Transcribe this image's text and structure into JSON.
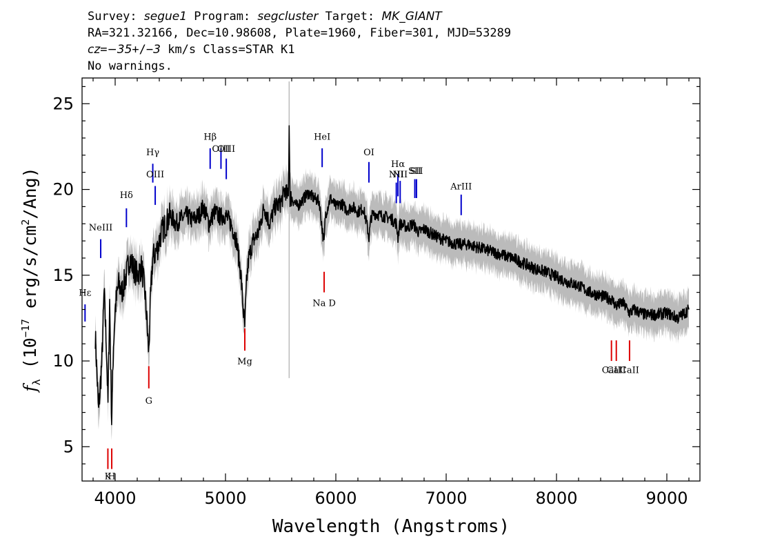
{
  "header": {
    "l1_a": "Survey: ",
    "survey": "segue1",
    "l1_b": " Program: ",
    "program": "segcluster",
    "l1_c": " Target: ",
    "target": "MK_GIANT",
    "line2": "RA=321.32166, Dec=10.98608, Plate=1960, Fiber=301, MJD=53289",
    "l3_cz": "cz",
    "l3_eq": "=",
    "l3_v": "−35",
    "l3_pm": "+/−",
    "l3_err": "3",
    "l3_rest": " km/s Class=STAR K1",
    "line4": "No warnings."
  },
  "chart_data": {
    "type": "line",
    "xlabel": "Wavelength (Angstroms)",
    "ylabel": "fλ (10⁻¹⁷ erg/s/cm²/Ang)",
    "xlim": [
      3700,
      9300
    ],
    "ylim": [
      3,
      26.5
    ],
    "x_ticks": [
      4000,
      5000,
      6000,
      7000,
      8000,
      9000
    ],
    "y_ticks": [
      5,
      10,
      15,
      20,
      25
    ],
    "grid": false,
    "legend": "none",
    "colors": {
      "spectrum": "#000000",
      "noise_band": "#bbbbbb",
      "emission_lines": "#0000cc",
      "absorption_lines": "#dd0000"
    },
    "series": [
      {
        "role": "spectrum",
        "x": [
          3820,
          3850,
          3880,
          3900,
          3920,
          3935,
          3950,
          3968,
          3985,
          4000,
          4030,
          4060,
          4100,
          4130,
          4160,
          4200,
          4240,
          4270,
          4290,
          4305,
          4320,
          4340,
          4380,
          4420,
          4460,
          4500,
          4550,
          4600,
          4650,
          4700,
          4760,
          4800,
          4850,
          4900,
          4950,
          5000,
          5050,
          5100,
          5140,
          5160,
          5175,
          5190,
          5210,
          5250,
          5300,
          5350,
          5400,
          5450,
          5500,
          5540,
          5570,
          5577,
          5585,
          5600,
          5650,
          5700,
          5750,
          5800,
          5850,
          5880,
          5893,
          5905,
          5950,
          6000,
          6050,
          6100,
          6150,
          6200,
          6250,
          6280,
          6300,
          6320,
          6350,
          6400,
          6450,
          6500,
          6550,
          6563,
          6580,
          6650,
          6700,
          6750,
          6800,
          6900,
          7000,
          7100,
          7200,
          7300,
          7400,
          7500,
          7600,
          7700,
          7800,
          7900,
          8000,
          8100,
          8200,
          8300,
          8400,
          8500,
          8542,
          8600,
          8662,
          8700,
          8800,
          8900,
          9000,
          9100,
          9200
        ],
        "y": [
          11.5,
          7.0,
          10.0,
          14.0,
          11.0,
          7.5,
          13.5,
          6.5,
          11.0,
          13.0,
          14.5,
          14.0,
          15.0,
          16.0,
          15.5,
          15.0,
          15.5,
          14.0,
          12.0,
          10.5,
          13.5,
          16.0,
          16.5,
          17.5,
          18.0,
          18.5,
          18.0,
          18.3,
          18.5,
          18.2,
          18.5,
          19.0,
          18.0,
          18.7,
          18.4,
          18.5,
          18.0,
          17.0,
          15.0,
          13.0,
          12.0,
          14.5,
          16.0,
          17.0,
          17.5,
          19.0,
          18.0,
          19.0,
          19.2,
          20.0,
          19.5,
          24.0,
          19.5,
          19.5,
          19.0,
          19.4,
          19.8,
          19.5,
          19.3,
          17.5,
          16.8,
          18.5,
          19.5,
          19.0,
          19.2,
          18.8,
          19.0,
          18.7,
          18.9,
          18.0,
          17.2,
          18.4,
          18.6,
          18.5,
          18.4,
          18.3,
          18.0,
          17.2,
          18.0,
          17.8,
          18.0,
          17.5,
          17.7,
          17.3,
          17.0,
          16.8,
          16.8,
          16.6,
          16.4,
          16.2,
          16.0,
          15.7,
          15.4,
          15.2,
          14.9,
          14.6,
          14.4,
          14.0,
          13.8,
          13.6,
          13.2,
          13.4,
          12.8,
          13.0,
          12.7,
          12.7,
          12.8,
          12.5,
          13.0
        ]
      }
    ],
    "line_markers": [
      {
        "label": "Hε",
        "wave": 3727,
        "y1": 12.3,
        "y2": 13.3,
        "label_y": 13.8,
        "kind": "emission"
      },
      {
        "label": "NeIII",
        "wave": 3869,
        "y1": 16.0,
        "y2": 17.1,
        "label_y": 17.6,
        "kind": "emission"
      },
      {
        "label": "Hδ",
        "wave": 4102,
        "y1": 17.8,
        "y2": 18.9,
        "label_y": 19.5,
        "kind": "emission"
      },
      {
        "label": "Hγ",
        "wave": 4341,
        "y1": 20.4,
        "y2": 21.5,
        "label_y": 22.0,
        "kind": "emission"
      },
      {
        "label": "OIII",
        "wave": 4363,
        "y1": 19.1,
        "y2": 20.2,
        "label_y": 20.7,
        "kind": "emission"
      },
      {
        "label": "Hβ",
        "wave": 4861,
        "y1": 21.2,
        "y2": 22.4,
        "label_y": 22.9,
        "kind": "emission"
      },
      {
        "label": "OIII",
        "wave": 4959,
        "y1": 21.2,
        "y2": 22.4,
        "label_y": 22.2,
        "kind": "emission"
      },
      {
        "label": "OIII",
        "wave": 5007,
        "y1": 20.6,
        "y2": 21.8,
        "label_y": 22.2,
        "kind": "emission"
      },
      {
        "label": "HeI",
        "wave": 5876,
        "y1": 21.3,
        "y2": 22.4,
        "label_y": 22.9,
        "kind": "emission"
      },
      {
        "label": "OI",
        "wave": 6300,
        "y1": 20.4,
        "y2": 21.6,
        "label_y": 22.0,
        "kind": "emission"
      },
      {
        "label": "NII",
        "wave": 6548,
        "y1": 19.2,
        "y2": 20.4,
        "label_y": 20.7,
        "kind": "emission"
      },
      {
        "label": "Hα",
        "wave": 6563,
        "y1": 19.6,
        "y2": 20.9,
        "label_y": 21.3,
        "kind": "emission"
      },
      {
        "label": "NII",
        "wave": 6583,
        "y1": 19.2,
        "y2": 20.5,
        "label_y": 20.7,
        "kind": "emission"
      },
      {
        "label": "SII",
        "wave": 6716,
        "y1": 19.5,
        "y2": 20.6,
        "label_y": 20.9,
        "kind": "emission"
      },
      {
        "label": "SII",
        "wave": 6731,
        "y1": 19.5,
        "y2": 20.6,
        "label_y": 20.9,
        "kind": "emission"
      },
      {
        "label": "ArIII",
        "wave": 7136,
        "y1": 18.5,
        "y2": 19.7,
        "label_y": 20.0,
        "kind": "emission"
      },
      {
        "label": "K",
        "wave": 3934,
        "y1": 3.7,
        "y2": 4.9,
        "label_y": 3.1,
        "kind": "absorption"
      },
      {
        "label": "H",
        "wave": 3969,
        "y1": 3.7,
        "y2": 4.9,
        "label_y": 3.1,
        "kind": "absorption"
      },
      {
        "label": "G",
        "wave": 4305,
        "y1": 8.4,
        "y2": 9.7,
        "label_y": 7.5,
        "kind": "absorption"
      },
      {
        "label": "Mg",
        "wave": 5175,
        "y1": 10.6,
        "y2": 11.9,
        "label_y": 9.8,
        "kind": "absorption"
      },
      {
        "label": "Na D",
        "wave": 5894,
        "y1": 14.0,
        "y2": 15.2,
        "label_y": 13.2,
        "kind": "absorption"
      },
      {
        "label": "CaII",
        "wave": 8498,
        "y1": 10.0,
        "y2": 11.2,
        "label_y": 9.3,
        "kind": "absorption"
      },
      {
        "label": "CaII",
        "wave": 8542,
        "y1": 10.0,
        "y2": 11.2,
        "label_y": 9.3,
        "kind": "absorption"
      },
      {
        "label": "CaII",
        "wave": 8662,
        "y1": 10.0,
        "y2": 11.2,
        "label_y": 9.3,
        "kind": "absorption"
      }
    ]
  }
}
